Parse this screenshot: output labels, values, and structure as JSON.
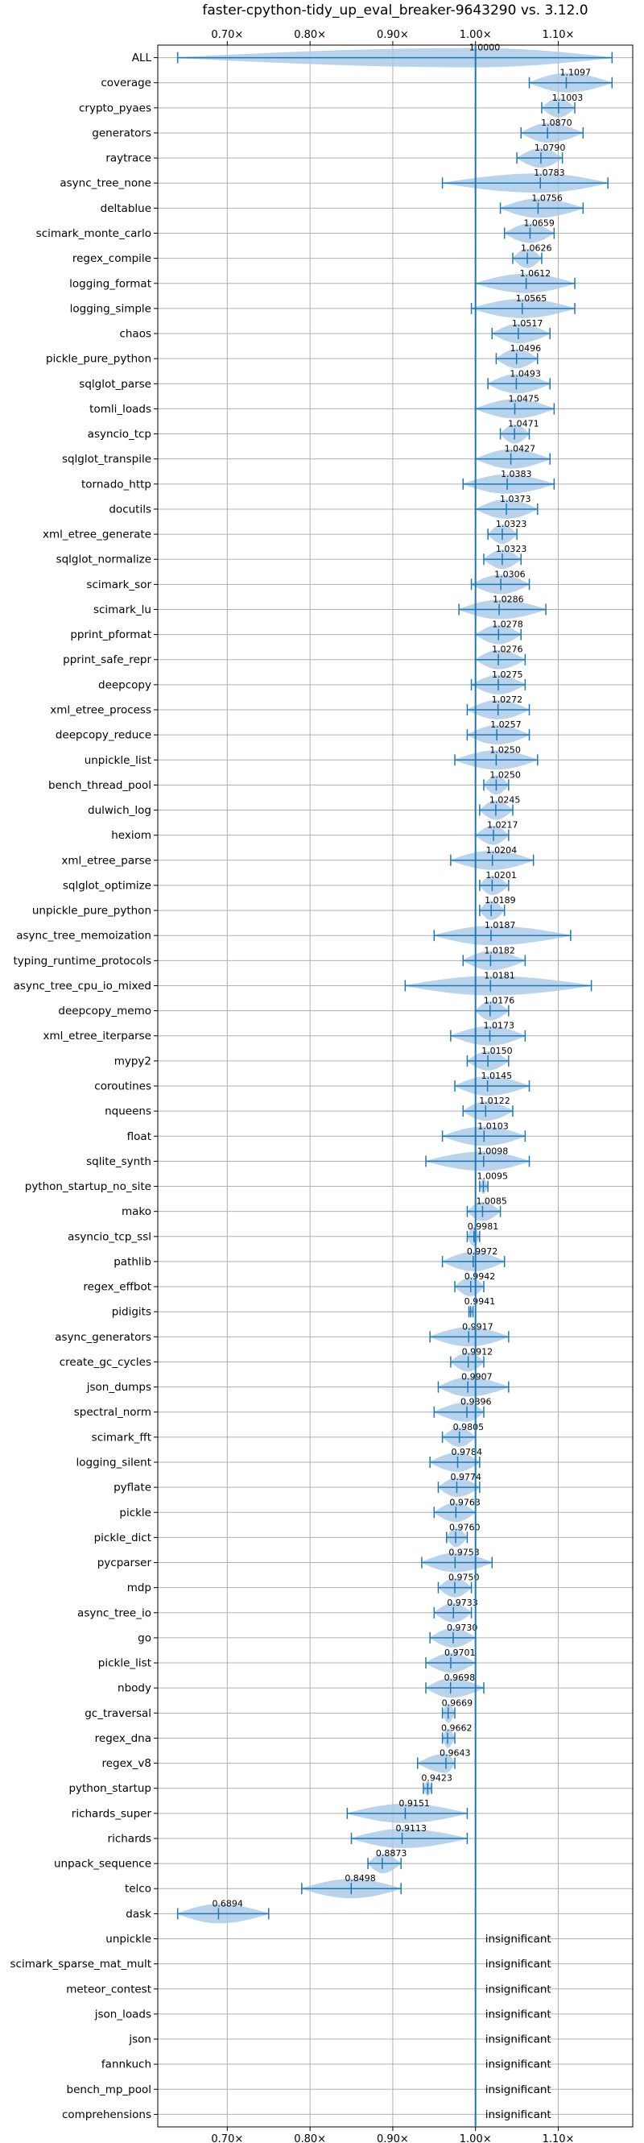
{
  "chart_data": {
    "type": "violin",
    "title": "faster-cpython-tidy_up_eval_breaker-9643290 vs. 3.12.0",
    "xlabel": "",
    "ylabel": "",
    "x_ticks": [
      0.7,
      0.8,
      0.9,
      1.0,
      1.1
    ],
    "x_tick_labels": [
      "0.70×",
      "0.80×",
      "0.90×",
      "1.00×",
      "1.10×"
    ],
    "xlim": [
      0.616,
      1.19
    ],
    "reference_line": 1.0,
    "grid": true,
    "colors": {
      "violin": "#a6c8e6",
      "line": "#1f77b4"
    },
    "insignificant_label": "insignificant",
    "benchmarks": [
      {
        "name": "ALL",
        "label": "1.0000",
        "center": 1.0,
        "min": 0.64,
        "max": 1.165
      },
      {
        "name": "coverage",
        "label": "1.1097",
        "center": 1.1097,
        "min": 1.065,
        "max": 1.165
      },
      {
        "name": "crypto_pyaes",
        "label": "1.1003",
        "center": 1.1003,
        "min": 1.08,
        "max": 1.12
      },
      {
        "name": "generators",
        "label": "1.0870",
        "center": 1.087,
        "min": 1.055,
        "max": 1.13
      },
      {
        "name": "raytrace",
        "label": "1.0790",
        "center": 1.079,
        "min": 1.05,
        "max": 1.105
      },
      {
        "name": "async_tree_none",
        "label": "1.0783",
        "center": 1.0783,
        "min": 0.96,
        "max": 1.16
      },
      {
        "name": "deltablue",
        "label": "1.0756",
        "center": 1.0756,
        "min": 1.03,
        "max": 1.13
      },
      {
        "name": "scimark_monte_carlo",
        "label": "1.0659",
        "center": 1.0659,
        "min": 1.035,
        "max": 1.095
      },
      {
        "name": "regex_compile",
        "label": "1.0626",
        "center": 1.0626,
        "min": 1.045,
        "max": 1.08
      },
      {
        "name": "logging_format",
        "label": "1.0612",
        "center": 1.0612,
        "min": 1.0,
        "max": 1.12
      },
      {
        "name": "logging_simple",
        "label": "1.0565",
        "center": 1.0565,
        "min": 0.995,
        "max": 1.12
      },
      {
        "name": "chaos",
        "label": "1.0517",
        "center": 1.0517,
        "min": 1.02,
        "max": 1.09
      },
      {
        "name": "pickle_pure_python",
        "label": "1.0496",
        "center": 1.0496,
        "min": 1.025,
        "max": 1.075
      },
      {
        "name": "sqlglot_parse",
        "label": "1.0493",
        "center": 1.0493,
        "min": 1.015,
        "max": 1.09
      },
      {
        "name": "tomli_loads",
        "label": "1.0475",
        "center": 1.0475,
        "min": 1.0,
        "max": 1.095
      },
      {
        "name": "asyncio_tcp",
        "label": "1.0471",
        "center": 1.0471,
        "min": 1.03,
        "max": 1.065
      },
      {
        "name": "sqlglot_transpile",
        "label": "1.0427",
        "center": 1.0427,
        "min": 1.0,
        "max": 1.09
      },
      {
        "name": "tornado_http",
        "label": "1.0383",
        "center": 1.0383,
        "min": 0.985,
        "max": 1.095
      },
      {
        "name": "docutils",
        "label": "1.0373",
        "center": 1.0373,
        "min": 1.0,
        "max": 1.075
      },
      {
        "name": "xml_etree_generate",
        "label": "1.0323",
        "center": 1.0323,
        "min": 1.015,
        "max": 1.05
      },
      {
        "name": "sqlglot_normalize",
        "label": "1.0323",
        "center": 1.0323,
        "min": 1.01,
        "max": 1.055
      },
      {
        "name": "scimark_sor",
        "label": "1.0306",
        "center": 1.0306,
        "min": 0.995,
        "max": 1.065
      },
      {
        "name": "scimark_lu",
        "label": "1.0286",
        "center": 1.0286,
        "min": 0.98,
        "max": 1.085
      },
      {
        "name": "pprint_pformat",
        "label": "1.0278",
        "center": 1.0278,
        "min": 1.0,
        "max": 1.055
      },
      {
        "name": "pprint_safe_repr",
        "label": "1.0276",
        "center": 1.0276,
        "min": 1.0,
        "max": 1.06
      },
      {
        "name": "deepcopy",
        "label": "1.0275",
        "center": 1.0275,
        "min": 0.995,
        "max": 1.06
      },
      {
        "name": "xml_etree_process",
        "label": "1.0272",
        "center": 1.0272,
        "min": 0.99,
        "max": 1.065
      },
      {
        "name": "deepcopy_reduce",
        "label": "1.0257",
        "center": 1.0257,
        "min": 0.99,
        "max": 1.065
      },
      {
        "name": "unpickle_list",
        "label": "1.0250",
        "center": 1.025,
        "min": 0.975,
        "max": 1.075
      },
      {
        "name": "bench_thread_pool",
        "label": "1.0250",
        "center": 1.025,
        "min": 1.01,
        "max": 1.04
      },
      {
        "name": "dulwich_log",
        "label": "1.0245",
        "center": 1.0245,
        "min": 1.005,
        "max": 1.045
      },
      {
        "name": "hexiom",
        "label": "1.0217",
        "center": 1.0217,
        "min": 1.0,
        "max": 1.04
      },
      {
        "name": "xml_etree_parse",
        "label": "1.0204",
        "center": 1.0204,
        "min": 0.97,
        "max": 1.07
      },
      {
        "name": "sqlglot_optimize",
        "label": "1.0201",
        "center": 1.0201,
        "min": 1.005,
        "max": 1.04
      },
      {
        "name": "unpickle_pure_python",
        "label": "1.0189",
        "center": 1.0189,
        "min": 1.005,
        "max": 1.035
      },
      {
        "name": "async_tree_memoization",
        "label": "1.0187",
        "center": 1.0187,
        "min": 0.95,
        "max": 1.115
      },
      {
        "name": "typing_runtime_protocols",
        "label": "1.0182",
        "center": 1.0182,
        "min": 0.985,
        "max": 1.06
      },
      {
        "name": "async_tree_cpu_io_mixed",
        "label": "1.0181",
        "center": 1.0181,
        "min": 0.915,
        "max": 1.14
      },
      {
        "name": "deepcopy_memo",
        "label": "1.0176",
        "center": 1.0176,
        "min": 1.0,
        "max": 1.04
      },
      {
        "name": "xml_etree_iterparse",
        "label": "1.0173",
        "center": 1.0173,
        "min": 0.97,
        "max": 1.06
      },
      {
        "name": "mypy2",
        "label": "1.0150",
        "center": 1.015,
        "min": 0.99,
        "max": 1.04
      },
      {
        "name": "coroutines",
        "label": "1.0145",
        "center": 1.0145,
        "min": 0.975,
        "max": 1.065
      },
      {
        "name": "nqueens",
        "label": "1.0122",
        "center": 1.0122,
        "min": 0.985,
        "max": 1.045
      },
      {
        "name": "float",
        "label": "1.0103",
        "center": 1.0103,
        "min": 0.96,
        "max": 1.06
      },
      {
        "name": "sqlite_synth",
        "label": "1.0098",
        "center": 1.0098,
        "min": 0.94,
        "max": 1.065
      },
      {
        "name": "python_startup_no_site",
        "label": "1.0095",
        "center": 1.0095,
        "min": 1.005,
        "max": 1.015
      },
      {
        "name": "mako",
        "label": "1.0085",
        "center": 1.0085,
        "min": 0.99,
        "max": 1.03
      },
      {
        "name": "asyncio_tcp_ssl",
        "label": "0.9981",
        "center": 0.9981,
        "min": 0.99,
        "max": 1.005
      },
      {
        "name": "pathlib",
        "label": "0.9972",
        "center": 0.9972,
        "min": 0.96,
        "max": 1.035
      },
      {
        "name": "regex_effbot",
        "label": "0.9942",
        "center": 0.9942,
        "min": 0.975,
        "max": 1.01
      },
      {
        "name": "pidigits",
        "label": "0.9941",
        "center": 0.9941,
        "min": 0.992,
        "max": 0.997
      },
      {
        "name": "async_generators",
        "label": "0.9917",
        "center": 0.9917,
        "min": 0.945,
        "max": 1.04
      },
      {
        "name": "create_gc_cycles",
        "label": "0.9912",
        "center": 0.9912,
        "min": 0.97,
        "max": 1.01
      },
      {
        "name": "json_dumps",
        "label": "0.9907",
        "center": 0.9907,
        "min": 0.955,
        "max": 1.04
      },
      {
        "name": "spectral_norm",
        "label": "0.9896",
        "center": 0.9896,
        "min": 0.95,
        "max": 1.01
      },
      {
        "name": "scimark_fft",
        "label": "0.9805",
        "center": 0.9805,
        "min": 0.96,
        "max": 1.0
      },
      {
        "name": "logging_silent",
        "label": "0.9784",
        "center": 0.9784,
        "min": 0.945,
        "max": 1.005
      },
      {
        "name": "pyflate",
        "label": "0.9774",
        "center": 0.9774,
        "min": 0.955,
        "max": 1.005
      },
      {
        "name": "pickle",
        "label": "0.9763",
        "center": 0.9763,
        "min": 0.95,
        "max": 1.0
      },
      {
        "name": "pickle_dict",
        "label": "0.9760",
        "center": 0.976,
        "min": 0.965,
        "max": 0.99
      },
      {
        "name": "pycparser",
        "label": "0.9753",
        "center": 0.9753,
        "min": 0.935,
        "max": 1.02
      },
      {
        "name": "mdp",
        "label": "0.9750",
        "center": 0.975,
        "min": 0.955,
        "max": 0.995
      },
      {
        "name": "async_tree_io",
        "label": "0.9733",
        "center": 0.9733,
        "min": 0.95,
        "max": 0.995
      },
      {
        "name": "go",
        "label": "0.9730",
        "center": 0.973,
        "min": 0.945,
        "max": 1.0
      },
      {
        "name": "pickle_list",
        "label": "0.9701",
        "center": 0.9701,
        "min": 0.94,
        "max": 1.0
      },
      {
        "name": "nbody",
        "label": "0.9698",
        "center": 0.9698,
        "min": 0.94,
        "max": 1.01
      },
      {
        "name": "gc_traversal",
        "label": "0.9669",
        "center": 0.9669,
        "min": 0.96,
        "max": 0.975
      },
      {
        "name": "regex_dna",
        "label": "0.9662",
        "center": 0.9662,
        "min": 0.96,
        "max": 0.975
      },
      {
        "name": "regex_v8",
        "label": "0.9643",
        "center": 0.9643,
        "min": 0.93,
        "max": 0.975
      },
      {
        "name": "python_startup",
        "label": "0.9423",
        "center": 0.9423,
        "min": 0.937,
        "max": 0.947
      },
      {
        "name": "richards_super",
        "label": "0.9151",
        "center": 0.9151,
        "min": 0.845,
        "max": 0.99
      },
      {
        "name": "richards",
        "label": "0.9113",
        "center": 0.9113,
        "min": 0.85,
        "max": 0.99
      },
      {
        "name": "unpack_sequence",
        "label": "0.8873",
        "center": 0.8873,
        "min": 0.87,
        "max": 0.91
      },
      {
        "name": "telco",
        "label": "0.8498",
        "center": 0.8498,
        "min": 0.79,
        "max": 0.91
      },
      {
        "name": "dask",
        "label": "0.6894",
        "center": 0.6894,
        "min": 0.64,
        "max": 0.75
      },
      {
        "name": "unpickle",
        "label": "insignificant",
        "insignificant": true
      },
      {
        "name": "scimark_sparse_mat_mult",
        "label": "insignificant",
        "insignificant": true
      },
      {
        "name": "meteor_contest",
        "label": "insignificant",
        "insignificant": true
      },
      {
        "name": "json_loads",
        "label": "insignificant",
        "insignificant": true
      },
      {
        "name": "json",
        "label": "insignificant",
        "insignificant": true
      },
      {
        "name": "fannkuch",
        "label": "insignificant",
        "insignificant": true
      },
      {
        "name": "bench_mp_pool",
        "label": "insignificant",
        "insignificant": true
      },
      {
        "name": "comprehensions",
        "label": "insignificant",
        "insignificant": true
      }
    ]
  }
}
